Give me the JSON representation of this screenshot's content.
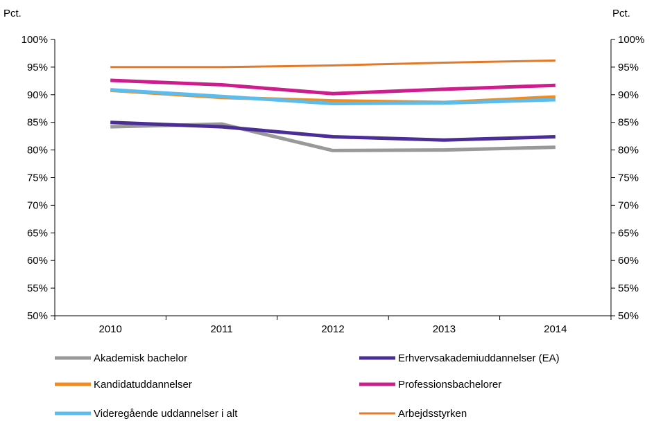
{
  "chart_data": {
    "type": "line",
    "unit_left": "Pct.",
    "unit_right": "Pct.",
    "x": [
      "2010",
      "2011",
      "2012",
      "2013",
      "2014"
    ],
    "y_ticks": [
      "50%",
      "55%",
      "60%",
      "65%",
      "70%",
      "75%",
      "80%",
      "85%",
      "90%",
      "95%",
      "100%"
    ],
    "ylim": [
      50,
      100
    ],
    "grid": false,
    "legend_position": "bottom",
    "series": [
      {
        "name": "Akademisk bachelor",
        "color": "#999999",
        "width": 5,
        "values": [
          84.2,
          84.7,
          79.9,
          80.0,
          80.5
        ]
      },
      {
        "name": "Erhvervsakademiuddannelser (EA)",
        "color": "#4b2d96",
        "width": 5,
        "values": [
          85.0,
          84.2,
          82.4,
          81.8,
          82.4
        ]
      },
      {
        "name": "Kandidatuddannelser",
        "color": "#f08c1e",
        "width": 5,
        "values": [
          90.8,
          89.5,
          88.9,
          88.6,
          89.6
        ]
      },
      {
        "name": "Professionsbachelorer",
        "color": "#cc1d8c",
        "width": 5,
        "values": [
          92.6,
          91.8,
          90.2,
          91.0,
          91.7
        ]
      },
      {
        "name": "Videregående uddannelser i alt",
        "color": "#5bbcee",
        "width": 5,
        "values": [
          90.9,
          89.7,
          88.4,
          88.5,
          89.1
        ]
      },
      {
        "name": "Arbejdsstyrken",
        "color": "#e07a2a",
        "width": 3,
        "values": [
          95.0,
          95.0,
          95.3,
          95.8,
          96.2
        ]
      }
    ]
  }
}
